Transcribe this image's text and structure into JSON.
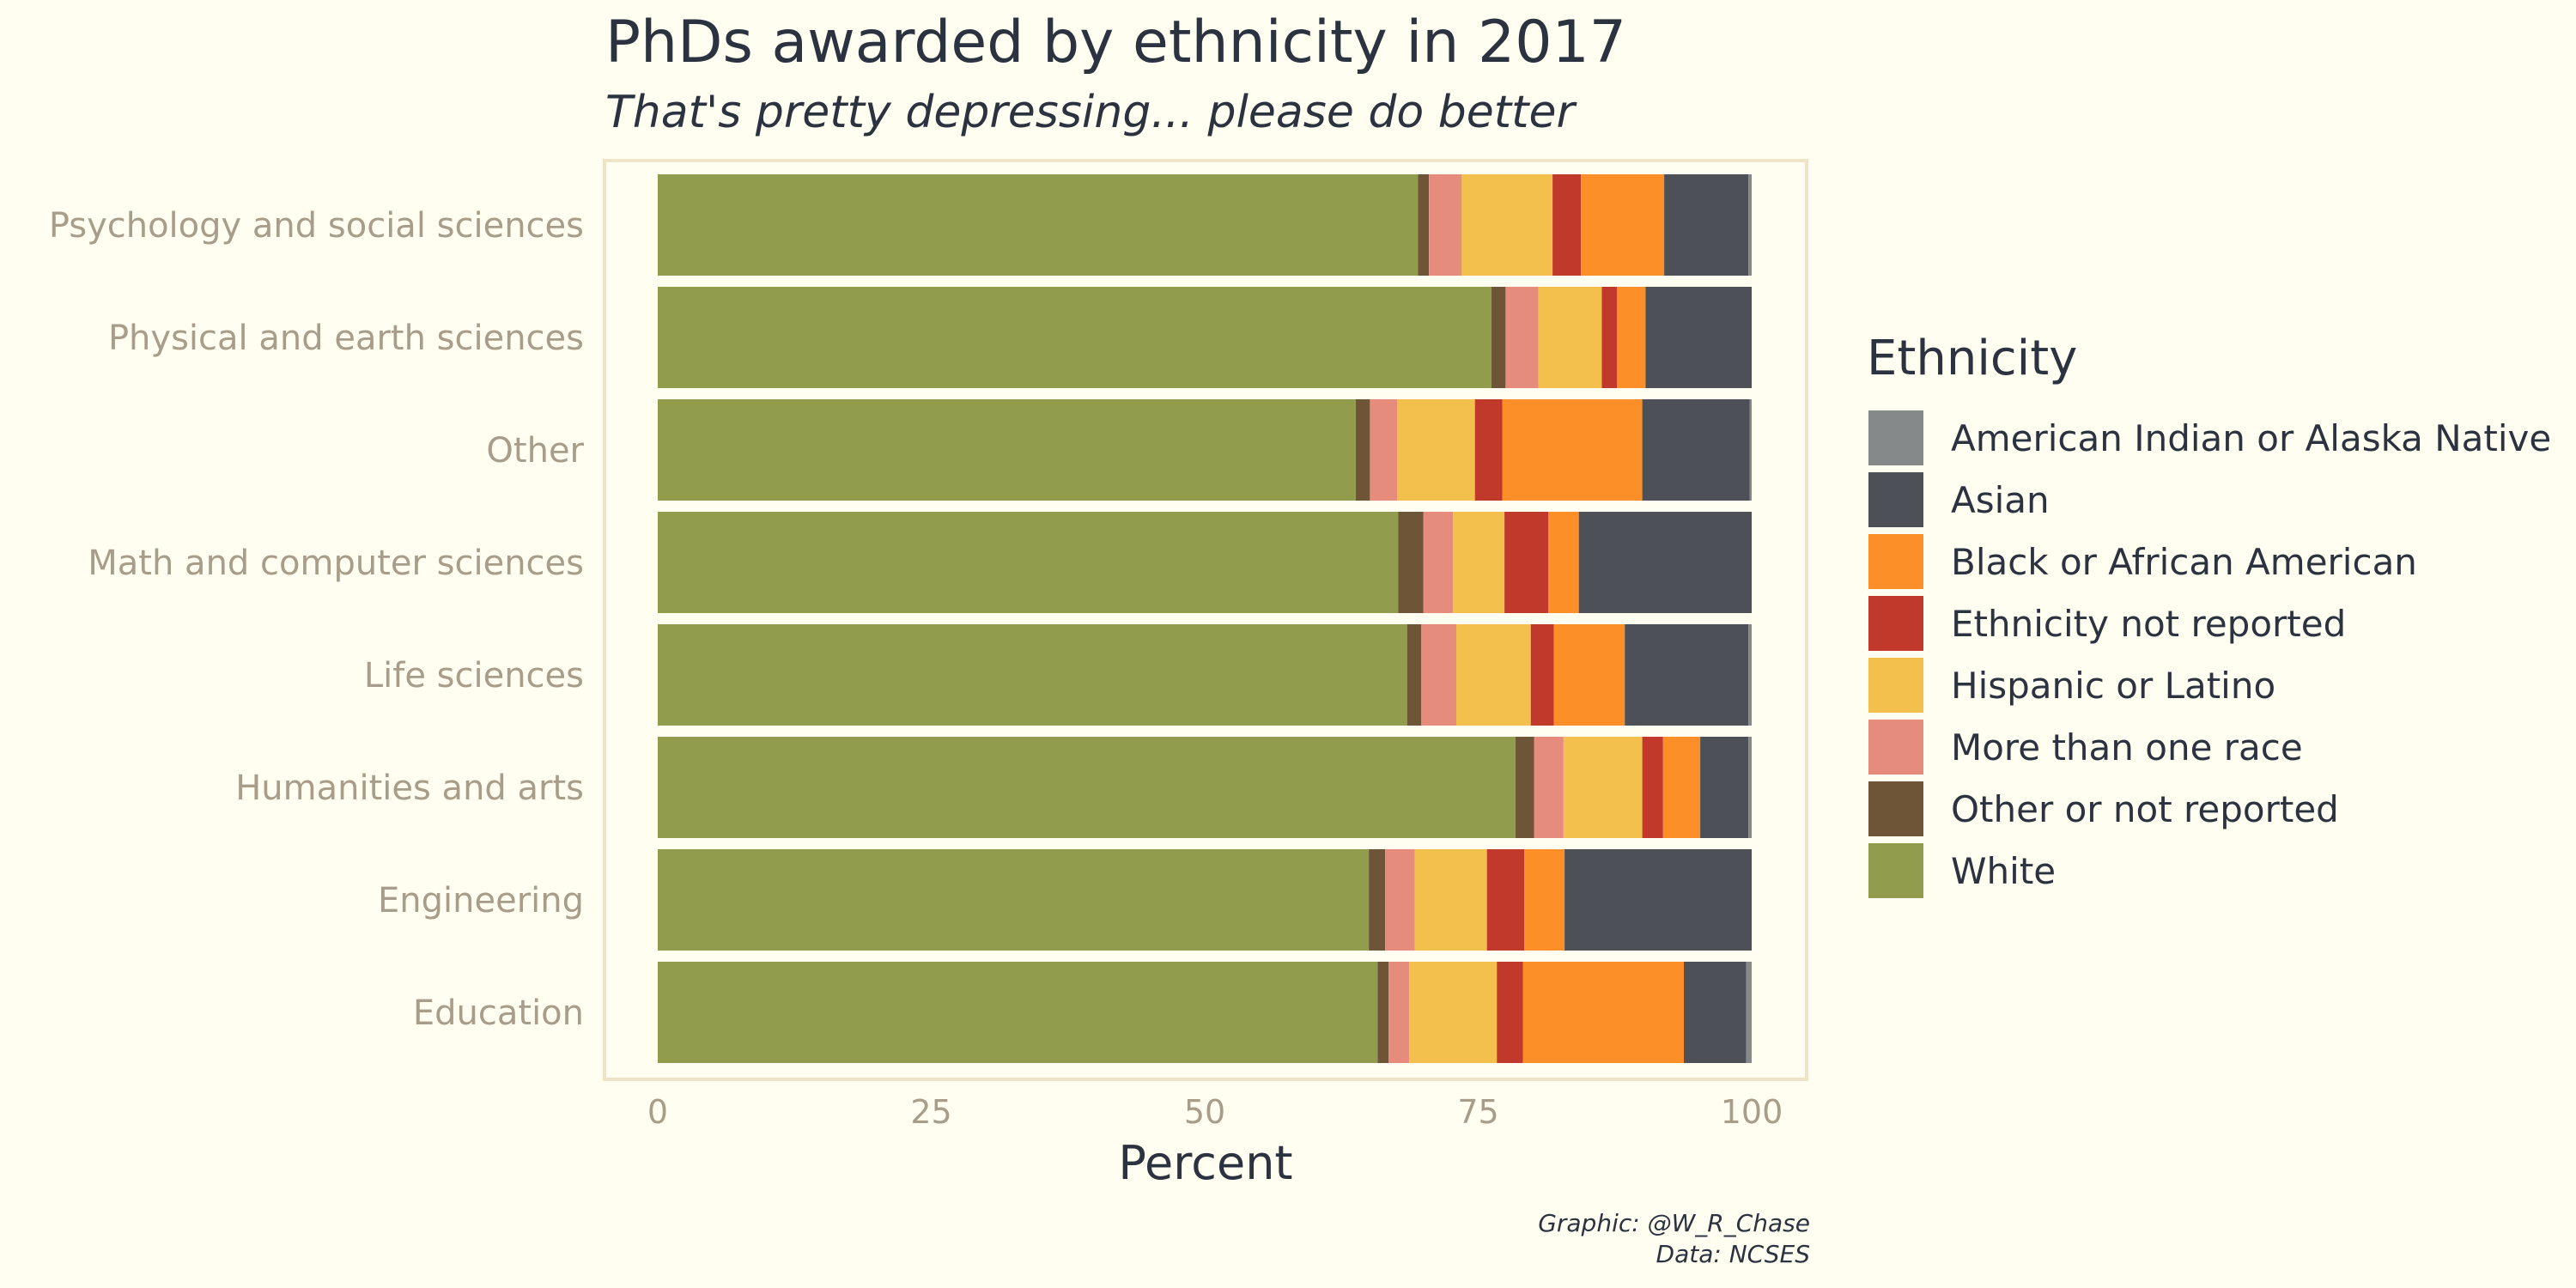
{
  "chart_data": {
    "type": "bar",
    "orientation": "horizontal",
    "stacked": true,
    "title": "PhDs awarded by ethnicity in 2017",
    "subtitle": "That's pretty depressing... please do better",
    "xlabel": "Percent",
    "ylabel": "",
    "xlim": [
      0,
      100
    ],
    "x_ticks": [
      "0",
      "25",
      "50",
      "75",
      "100"
    ],
    "x_tick_values": [
      0,
      25,
      50,
      75,
      100
    ],
    "categories": [
      "Psychology and social sciences",
      "Physical and earth sciences",
      "Other",
      "Math and computer sciences",
      "Life sciences",
      "Humanities and arts",
      "Engineering",
      "Education"
    ],
    "legend_title": "Ethnicity",
    "legend_position": "right",
    "series": [
      {
        "name": "White",
        "color": "#929c4d",
        "values": [
          69.5,
          76.2,
          63.8,
          67.7,
          68.5,
          78.4,
          65.0,
          65.8
        ]
      },
      {
        "name": "Other or not reported",
        "color": "#6e5538",
        "values": [
          1.0,
          1.3,
          1.3,
          2.3,
          1.3,
          1.7,
          1.5,
          1.0
        ]
      },
      {
        "name": "More than one race",
        "color": "#e68c7c",
        "values": [
          3.0,
          3.0,
          2.5,
          2.7,
          3.2,
          2.7,
          2.7,
          1.9
        ]
      },
      {
        "name": "Hispanic or Latino",
        "color": "#f3c04d",
        "values": [
          8.3,
          5.8,
          7.1,
          4.7,
          6.8,
          7.2,
          6.6,
          8.0
        ]
      },
      {
        "name": "Ethnicity not reported",
        "color": "#c0392b",
        "values": [
          2.6,
          1.4,
          2.5,
          4.0,
          2.1,
          1.9,
          3.4,
          2.4
        ]
      },
      {
        "name": "Black or African American",
        "color": "#fd8f28",
        "values": [
          7.6,
          2.6,
          12.8,
          2.8,
          6.5,
          3.4,
          3.7,
          14.7
        ]
      },
      {
        "name": "Asian",
        "color": "#4e5058",
        "values": [
          7.7,
          9.7,
          9.8,
          15.8,
          11.3,
          4.4,
          17.1,
          5.7
        ]
      },
      {
        "name": "American Indian or Alaska Native",
        "color": "#868989",
        "values": [
          0.3,
          0.0,
          0.2,
          0.0,
          0.3,
          0.3,
          0.0,
          0.5
        ]
      }
    ],
    "legend_order": [
      "American Indian or Alaska Native",
      "Asian",
      "Black or African American",
      "Ethnicity not reported",
      "Hispanic or Latino",
      "More than one race",
      "Other or not reported",
      "White"
    ],
    "grid": false,
    "caption": [
      "Graphic: @W_R_Chase",
      "Data: NCSES"
    ]
  }
}
